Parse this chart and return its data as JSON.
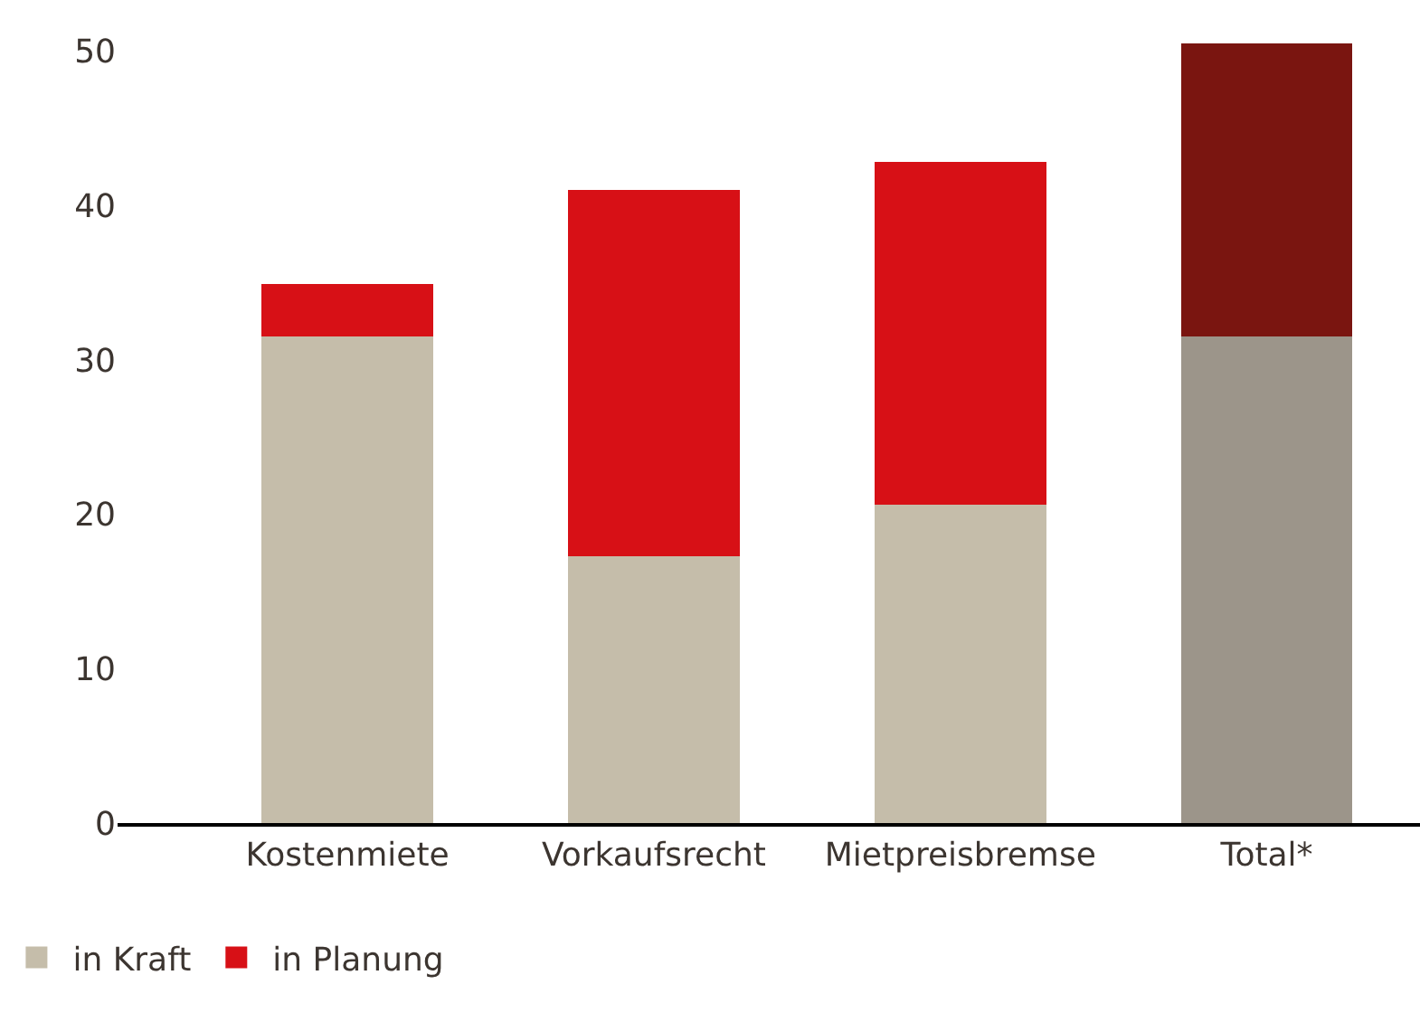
{
  "chart_data": {
    "type": "bar",
    "stacked": true,
    "categories": [
      "Kostenmiete",
      "Vorkaufsrecht",
      "Mietpreisbremse",
      "Total*"
    ],
    "series": [
      {
        "name": "in Kraft",
        "colors": [
          "#c5bdaa",
          "#c5bdaa",
          "#c5bdaa",
          "#9c958a"
        ],
        "values": [
          31.5,
          17.3,
          20.6,
          31.5
        ]
      },
      {
        "name": "in Planung",
        "colors": [
          "#d71016",
          "#d71016",
          "#d71016",
          "#7a1510"
        ],
        "values": [
          3.4,
          23.7,
          22.2,
          19
        ]
      }
    ],
    "ylim": [
      0,
      50.5
    ],
    "yticks": [
      0,
      10,
      20,
      30,
      40,
      50
    ],
    "grid": false,
    "legend": "bottom left"
  }
}
